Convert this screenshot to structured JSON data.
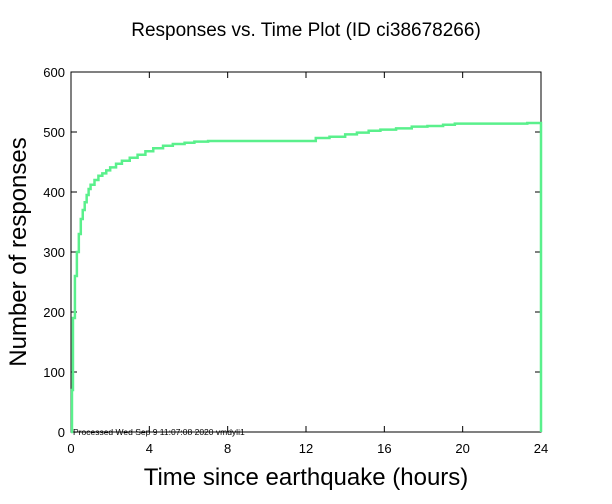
{
  "chart_data": {
    "type": "line",
    "title": "Responses vs. Time Plot (ID ci38678266)",
    "xlabel": "Time since earthquake (hours)",
    "ylabel": "Number of responses",
    "xlim": [
      0,
      24
    ],
    "ylim": [
      0,
      600
    ],
    "xticks": [
      0,
      4,
      8,
      12,
      16,
      20,
      24
    ],
    "yticks": [
      0,
      100,
      200,
      300,
      400,
      500,
      600
    ],
    "grid": false,
    "line_color": "#5af08c",
    "annotation": "Processed Wed Sep  9 11:07:08 2020 vmdyli1",
    "series": [
      {
        "step": true,
        "points": [
          [
            0,
            0
          ],
          [
            0.05,
            70
          ],
          [
            0.1,
            190
          ],
          [
            0.2,
            260
          ],
          [
            0.3,
            300
          ],
          [
            0.4,
            330
          ],
          [
            0.5,
            355
          ],
          [
            0.6,
            370
          ],
          [
            0.7,
            383
          ],
          [
            0.8,
            395
          ],
          [
            0.9,
            405
          ],
          [
            1.0,
            412
          ],
          [
            1.2,
            420
          ],
          [
            1.4,
            427
          ],
          [
            1.6,
            431
          ],
          [
            1.8,
            436
          ],
          [
            2.0,
            441
          ],
          [
            2.3,
            447
          ],
          [
            2.6,
            452
          ],
          [
            3.0,
            457
          ],
          [
            3.4,
            462
          ],
          [
            3.8,
            468
          ],
          [
            4.2,
            473
          ],
          [
            4.7,
            477
          ],
          [
            5.2,
            480
          ],
          [
            5.8,
            482
          ],
          [
            6.3,
            484
          ],
          [
            7.0,
            485
          ],
          [
            8.0,
            485
          ],
          [
            10.0,
            485
          ],
          [
            12.4,
            485
          ],
          [
            12.5,
            490
          ],
          [
            13.2,
            492
          ],
          [
            14.0,
            496
          ],
          [
            14.6,
            499
          ],
          [
            15.2,
            502
          ],
          [
            15.8,
            504
          ],
          [
            16.6,
            506
          ],
          [
            17.4,
            509
          ],
          [
            18.2,
            510
          ],
          [
            19.0,
            512
          ],
          [
            19.6,
            514
          ],
          [
            21.0,
            514
          ],
          [
            22.5,
            514
          ],
          [
            23.3,
            515
          ],
          [
            24,
            515
          ],
          [
            24,
            0
          ]
        ]
      }
    ]
  }
}
